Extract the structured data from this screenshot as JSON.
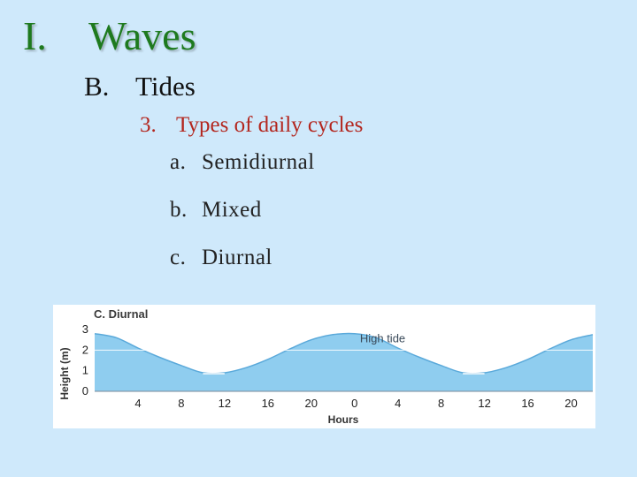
{
  "slide": {
    "title_num": "I.",
    "title_text": "Waves",
    "section": {
      "num": "B.",
      "label": "Tides"
    },
    "subsection": {
      "num": "3.",
      "label": "Types of daily cycles"
    },
    "items": [
      {
        "num": "a.",
        "label": "Semidiurnal"
      },
      {
        "num": "b.",
        "label": "Mixed"
      },
      {
        "num": "c.",
        "label": "Diurnal"
      }
    ]
  },
  "chart_data": {
    "type": "area",
    "title": "C. Diurnal",
    "xlabel": "Hours",
    "ylabel": "Height (m)",
    "x_tick_labels": [
      "4",
      "8",
      "12",
      "16",
      "20",
      "0",
      "4",
      "8",
      "12",
      "16",
      "20"
    ],
    "y_tick_labels": [
      "0",
      "1",
      "2",
      "3"
    ],
    "ylim": [
      0,
      3
    ],
    "annotations": [
      "High tide"
    ],
    "high_tide_level_m": 2.0,
    "x_hours": [
      0,
      2,
      4,
      6,
      8,
      10,
      12,
      14,
      16,
      18,
      20,
      22,
      24,
      26,
      28,
      30,
      32,
      34,
      36,
      38,
      40,
      42,
      44,
      46
    ],
    "height_m": [
      2.8,
      2.6,
      2.1,
      1.65,
      1.25,
      0.9,
      0.9,
      1.15,
      1.55,
      2.05,
      2.5,
      2.75,
      2.8,
      2.6,
      2.1,
      1.65,
      1.25,
      0.9,
      0.9,
      1.15,
      1.55,
      2.05,
      2.5,
      2.75
    ],
    "colors": {
      "water": "#8fcdef",
      "water_dark": "#70b7e3",
      "line": "#5aa9da",
      "highlight": "#ffffff"
    }
  }
}
